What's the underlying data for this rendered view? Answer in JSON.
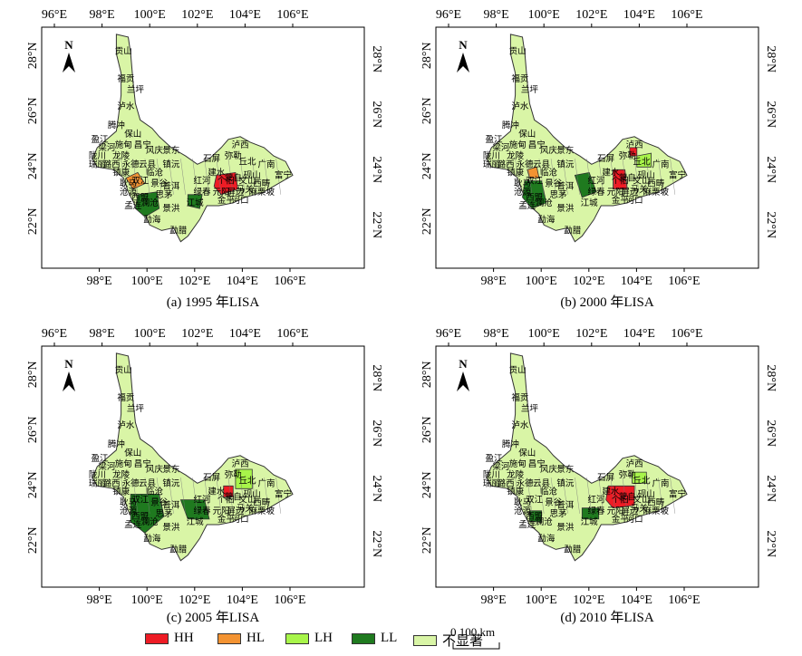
{
  "axes": {
    "top_ticks": [
      "96°E",
      "98°E",
      "100°E",
      "102°E",
      "104°E",
      "106°E"
    ],
    "bottom_ticks": [
      "98°E",
      "100°E",
      "102°E",
      "104°E",
      "106°E"
    ],
    "lat_ticks": [
      "28°N",
      "26°N",
      "24°N",
      "22°N"
    ],
    "north_label": "N"
  },
  "panels": [
    {
      "caption": "(a) 1995 年LISA"
    },
    {
      "caption": "(b) 2000 年LISA"
    },
    {
      "caption": "(c) 2005 年LISA"
    },
    {
      "caption": "(d) 2010 年LISA"
    }
  ],
  "colors": {
    "HH": "#ee1c25",
    "HL": "#f39332",
    "LH": "#a8f54a",
    "LL": "#1f7a1f",
    "NS": "#d9f5a6",
    "border": "#333333"
  },
  "legend": [
    {
      "key": "HH",
      "label": "HH"
    },
    {
      "key": "HL",
      "label": "HL"
    },
    {
      "key": "LH",
      "label": "LH"
    },
    {
      "key": "LL",
      "label": "LL"
    },
    {
      "key": "NS",
      "label": "不显著"
    }
  ],
  "scale": {
    "text": "0 100 km"
  },
  "places": [
    "贡山",
    "福贡",
    "兰坪",
    "泸水",
    "腾冲",
    "保山",
    "盈江",
    "梁河",
    "施甸",
    "昌宁",
    "陇川",
    "龙陵",
    "风庆",
    "景东",
    "瑞丽",
    "潞西",
    "永德",
    "云县",
    "镇康",
    "耿马",
    "双江",
    "临沧",
    "镇沅",
    "沧源",
    "景谷",
    "普洱",
    "西盟",
    "孟连",
    "澜沧",
    "思茅",
    "景洪",
    "勐海",
    "勐腊",
    "江城",
    "绿春",
    "石屏",
    "建水",
    "红河",
    "个旧",
    "蒙自",
    "元阳",
    "金平",
    "屏边",
    "河口",
    "泸西",
    "弥勒",
    "丘北",
    "广南",
    "砚山",
    "文山",
    "西畴",
    "马关",
    "麻栗坡",
    "富宁"
  ]
}
